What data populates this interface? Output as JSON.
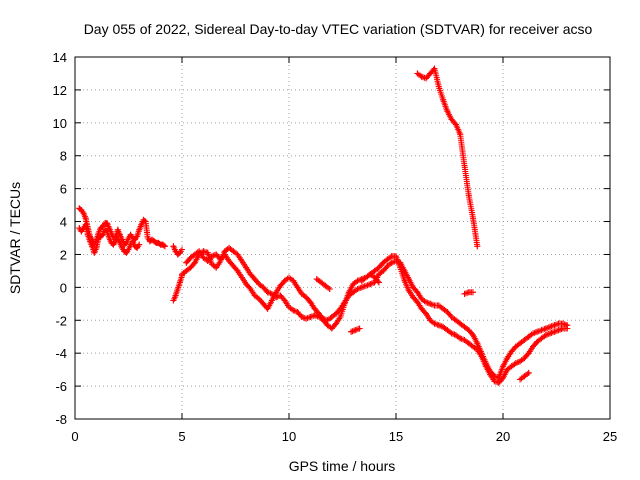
{
  "chart_data": {
    "type": "scatter",
    "title": "Day 055 of 2022, Sidereal Day-to-day VTEC variation (SDTVAR) for receiver acso",
    "xlabel": "GPS time / hours",
    "ylabel": "SDTVAR / TECUs",
    "xlim": [
      0,
      25
    ],
    "ylim": [
      -8,
      14
    ],
    "xticks": [
      0,
      5,
      10,
      15,
      20,
      25
    ],
    "yticks": [
      -8,
      -6,
      -4,
      -2,
      0,
      2,
      4,
      6,
      8,
      10,
      12,
      14
    ],
    "xtick_labels": [
      "0",
      "5",
      "10",
      "15",
      "20",
      "25"
    ],
    "ytick_labels": [
      "-8",
      "-6",
      "-4",
      "-2",
      "0",
      "2",
      "4",
      "6",
      "8",
      "10",
      "12",
      "14"
    ],
    "grid": true,
    "marker": "+",
    "series": [
      {
        "name": "SDTVAR",
        "color": "#ff0000",
        "segments": [
          {
            "x": [
              0.2,
              0.3,
              0.4,
              0.5,
              0.6,
              0.7,
              0.8,
              0.9,
              1.0,
              1.1,
              1.2,
              1.3,
              1.4,
              1.5,
              1.6,
              1.7,
              1.8,
              1.9,
              2.0,
              2.1,
              2.2,
              2.3,
              2.4,
              2.5,
              2.6,
              2.7,
              2.8,
              2.9,
              3.0,
              3.1,
              3.2,
              3.3,
              3.4,
              3.5,
              3.6,
              3.7,
              3.8,
              3.9,
              4.0,
              4.1,
              4.2
            ],
            "y": [
              4.8,
              4.7,
              4.5,
              4.2,
              3.6,
              3.1,
              2.9,
              2.6,
              2.9,
              3.3,
              3.6,
              3.7,
              3.9,
              3.9,
              3.6,
              3.3,
              3.0,
              3.1,
              3.5,
              3.2,
              2.9,
              2.6,
              2.7,
              3.0,
              3.2,
              3.0,
              2.9,
              3.1,
              3.5,
              3.8,
              4.1,
              4.0,
              3.0,
              2.8,
              2.9,
              2.8,
              2.7,
              2.7,
              2.6,
              2.6,
              2.5
            ]
          },
          {
            "x": [
              0.2,
              0.3,
              0.4,
              0.5,
              0.6,
              0.7,
              0.8,
              0.9,
              1.0,
              1.1,
              1.2,
              1.3,
              1.4,
              1.5,
              1.6,
              1.7,
              1.8,
              1.9,
              2.0,
              2.1,
              2.2,
              2.3,
              2.4,
              2.5,
              2.6,
              2.7,
              2.8,
              2.9,
              3.0
            ],
            "y": [
              3.6,
              3.4,
              3.6,
              3.8,
              3.2,
              2.8,
              2.5,
              2.1,
              2.4,
              3.0,
              3.1,
              3.2,
              3.5,
              3.4,
              3.0,
              2.7,
              2.6,
              2.8,
              3.0,
              2.7,
              2.4,
              2.2,
              2.1,
              2.3,
              2.6,
              2.8,
              2.5,
              2.4,
              2.6
            ]
          },
          {
            "x": [
              4.6,
              4.7,
              4.8,
              4.9,
              5.0
            ],
            "y": [
              -0.8,
              -0.5,
              -0.1,
              0.3,
              0.7
            ]
          },
          {
            "x": [
              4.6,
              4.7,
              4.8,
              4.9,
              5.0
            ],
            "y": [
              2.5,
              2.2,
              2.0,
              2.1,
              2.3
            ]
          },
          {
            "x": [
              5.0,
              5.2,
              5.4,
              5.6,
              5.8,
              6.0,
              6.2,
              6.4,
              6.6,
              6.8,
              7.0,
              7.2,
              7.4,
              7.6,
              7.8,
              8.0,
              8.2,
              8.4,
              8.6,
              8.8,
              9.0,
              9.2,
              9.4,
              9.6,
              9.8,
              10.0,
              10.2,
              10.4,
              10.6,
              10.8,
              11.0,
              11.2,
              11.4,
              11.6,
              11.8,
              12.0,
              12.2,
              12.4,
              12.6,
              12.8,
              13.0,
              13.2,
              13.4,
              13.6,
              13.8,
              14.0,
              14.2,
              14.4,
              14.6,
              14.8,
              15.0,
              15.2,
              15.4,
              15.6,
              15.8,
              16.0,
              16.2,
              16.4,
              16.6,
              16.8,
              17.0,
              17.2,
              17.4,
              17.6,
              17.8,
              18.0,
              18.2,
              18.4,
              18.6,
              18.8,
              19.0,
              19.2,
              19.4,
              19.6,
              19.8,
              20.0,
              20.2,
              20.4,
              20.6,
              20.8,
              21.0,
              21.2,
              21.4,
              21.6,
              21.8,
              22.0,
              22.2,
              22.4,
              22.6,
              22.8,
              23.0
            ],
            "y": [
              0.8,
              1.0,
              1.2,
              1.5,
              2.0,
              2.2,
              2.1,
              1.4,
              1.2,
              1.6,
              2.2,
              2.4,
              2.2,
              2.0,
              1.6,
              1.2,
              0.8,
              0.5,
              0.2,
              0.0,
              -0.3,
              -0.4,
              -0.6,
              -0.5,
              -0.8,
              -1.2,
              -1.4,
              -1.5,
              -1.8,
              -1.9,
              -1.8,
              -1.7,
              -1.8,
              -1.9,
              -2.0,
              -1.8,
              -1.6,
              -1.3,
              -0.9,
              -0.5,
              -0.3,
              -0.1,
              0.0,
              0.1,
              0.2,
              0.3,
              0.8,
              1.0,
              1.3,
              1.5,
              1.6,
              1.5,
              1.0,
              0.5,
              0.0,
              -0.3,
              -0.7,
              -0.9,
              -1.0,
              -1.1,
              -1.1,
              -1.3,
              -1.5,
              -1.8,
              -2.0,
              -2.2,
              -2.4,
              -2.6,
              -2.9,
              -3.4,
              -4.0,
              -4.6,
              -5.1,
              -5.4,
              -5.5,
              -4.8,
              -4.3,
              -3.9,
              -3.6,
              -3.4,
              -3.2,
              -3.0,
              -2.8,
              -2.7,
              -2.6,
              -2.5,
              -2.4,
              -2.3,
              -2.2,
              -2.2,
              -2.3
            ]
          },
          {
            "x": [
              5.2,
              5.4,
              5.6,
              5.8,
              6.0,
              6.2,
              6.4,
              6.6,
              6.8,
              7.0,
              7.2,
              7.4,
              7.6,
              7.8,
              8.0,
              8.2,
              8.4,
              8.6,
              8.8,
              9.0,
              9.2,
              9.4,
              9.6,
              9.8,
              10.0,
              10.2,
              10.4,
              10.6,
              10.8,
              11.0,
              11.2,
              11.4,
              11.6,
              11.8,
              12.0,
              12.2,
              12.4,
              12.6,
              12.8,
              13.0,
              13.2,
              13.4,
              13.6,
              13.8,
              14.0,
              14.2,
              14.4,
              14.6,
              14.8,
              15.0,
              15.2,
              15.4,
              15.6,
              15.8,
              16.0,
              16.2,
              16.4,
              16.6,
              16.8,
              17.0,
              17.2,
              17.4,
              17.6,
              17.8,
              18.0,
              18.2,
              18.4,
              18.6,
              18.8,
              19.0,
              19.2,
              19.4,
              19.6,
              19.8,
              20.0,
              20.2,
              20.4,
              20.6,
              20.8,
              21.0,
              21.2,
              21.4,
              21.6,
              21.8,
              22.0,
              22.2,
              22.4,
              22.6,
              22.8,
              23.0
            ],
            "y": [
              1.5,
              1.8,
              2.0,
              2.2,
              1.8,
              1.6,
              1.9,
              2.0,
              1.7,
              2.0,
              1.6,
              1.3,
              1.0,
              0.6,
              0.2,
              -0.1,
              -0.5,
              -0.7,
              -1.0,
              -1.3,
              -0.8,
              -0.3,
              0.1,
              0.4,
              0.6,
              0.4,
              0.0,
              -0.4,
              -0.6,
              -0.9,
              -1.3,
              -1.6,
              -2.0,
              -2.3,
              -2.5,
              -2.2,
              -1.8,
              -1.0,
              -0.3,
              0.2,
              0.4,
              0.5,
              0.6,
              0.8,
              1.0,
              1.2,
              1.5,
              1.7,
              1.9,
              1.9,
              1.2,
              0.4,
              -0.2,
              -0.6,
              -0.9,
              -1.3,
              -1.6,
              -2.0,
              -2.2,
              -2.3,
              -2.4,
              -2.6,
              -2.8,
              -2.9,
              -3.1,
              -3.2,
              -3.4,
              -3.6,
              -3.8,
              -4.2,
              -4.8,
              -5.3,
              -5.7,
              -5.8,
              -5.5,
              -5.0,
              -4.8,
              -4.6,
              -4.5,
              -4.3,
              -4.0,
              -3.6,
              -3.3,
              -3.1,
              -2.9,
              -2.8,
              -2.7,
              -2.6,
              -2.5,
              -2.5
            ]
          },
          {
            "x": [
              11.3,
              11.5,
              11.7,
              11.9
            ],
            "y": [
              0.5,
              0.3,
              0.1,
              -0.1
            ]
          },
          {
            "x": [
              12.9,
              13.1,
              13.3
            ],
            "y": [
              -2.7,
              -2.6,
              -2.5
            ]
          },
          {
            "x": [
              13.4,
              13.6,
              13.8,
              14.0,
              14.2
            ],
            "y": [
              0.4,
              0.6,
              0.8,
              0.6,
              0.3
            ]
          },
          {
            "x": [
              18.2,
              18.4,
              18.6
            ],
            "y": [
              -0.4,
              -0.3,
              -0.3
            ]
          },
          {
            "x": [
              20.8,
              21.0,
              21.2
            ],
            "y": [
              -5.6,
              -5.4,
              -5.2
            ]
          },
          {
            "x": [
              16.0,
              16.2,
              16.4,
              16.6,
              16.8,
              17.0,
              17.2,
              17.4,
              17.6,
              17.8,
              18.0,
              18.2,
              18.4,
              18.6,
              18.8
            ],
            "y": [
              13.0,
              12.8,
              12.7,
              13.0,
              13.3,
              12.2,
              11.4,
              10.7,
              10.2,
              9.9,
              9.3,
              7.4,
              5.6,
              4.2,
              2.5
            ]
          }
        ]
      }
    ]
  }
}
